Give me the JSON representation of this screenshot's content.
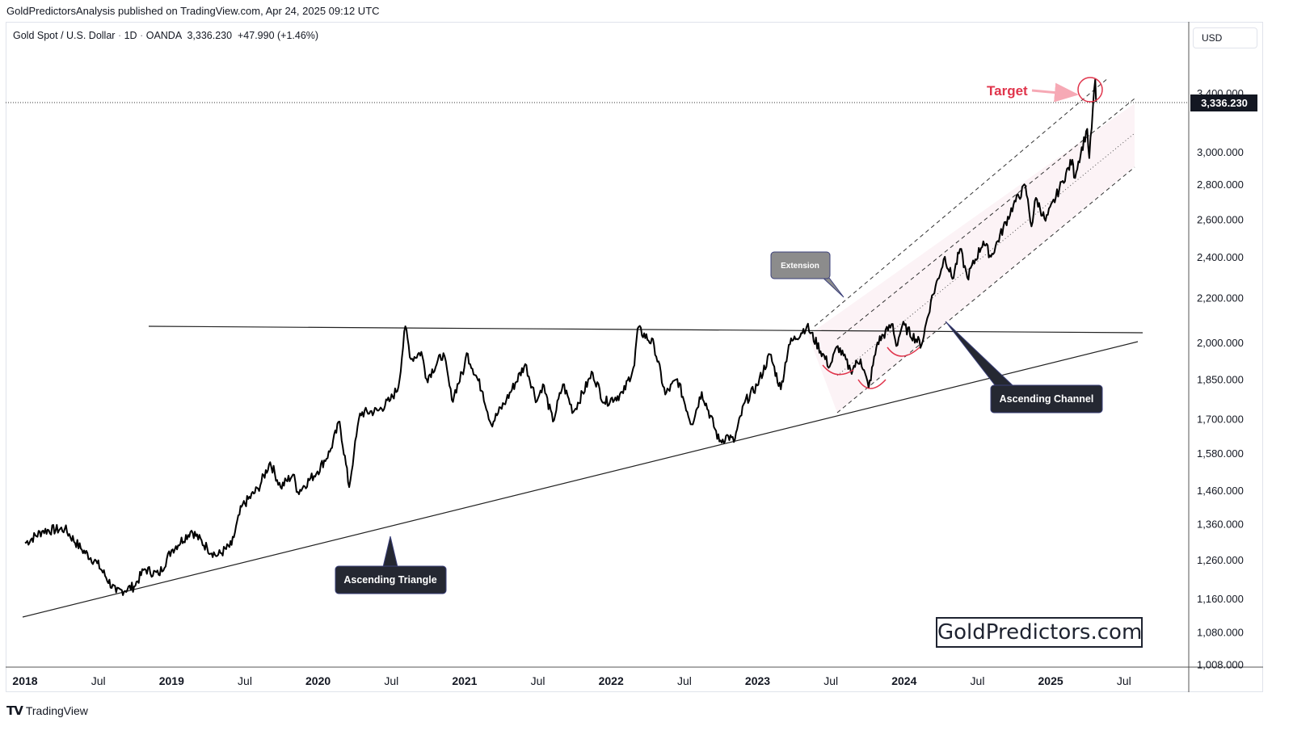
{
  "header": {
    "published": "GoldPredictorsAnalysis published on TradingView.com, Apr 24, 2025 09:12 UTC",
    "symbol": "Gold Spot / U.S. Dollar",
    "interval": "1D",
    "exchange": "OANDA",
    "price": "3,336.230",
    "change": "+47.990 (+1.46%)",
    "sep": "·"
  },
  "currency_button": "USD",
  "footer": {
    "brand": "TradingView"
  },
  "watermark": "GoldPredictors.com",
  "colors": {
    "price_line": "#000000",
    "target": "#e0344b",
    "channel_fill": "#fbeef2",
    "label_dark": "#252832",
    "label_grey": "#8c8c8c"
  },
  "chart_data": {
    "type": "line",
    "series_name": "Gold Spot / U.S. Dollar",
    "x_ticks": [
      "2018",
      "Jul",
      "2019",
      "Jul",
      "2020",
      "Jul",
      "2021",
      "Jul",
      "2022",
      "Jul",
      "2023",
      "Jul",
      "2024",
      "Jul",
      "2025",
      "Jul"
    ],
    "y_ticks": [
      "3,400.000",
      "3,000.000",
      "2,800.000",
      "2,600.000",
      "2,400.000",
      "2,200.000",
      "2,000.000",
      "1,850.000",
      "1,700.000",
      "1,580.000",
      "1,460.000",
      "1,360.000",
      "1,260.000",
      "1,160.000",
      "1,080.000",
      "1,008.000"
    ],
    "scale": "log",
    "last_price_label": "3,336.230",
    "annotations": {
      "target": "Target",
      "extension": "Extension",
      "ascending_channel": "Ascending Channel",
      "ascending_triangle": "Ascending Triangle"
    },
    "price_points": [
      [
        "2018-01-01",
        1305
      ],
      [
        "2018-02-15",
        1340
      ],
      [
        "2018-04-10",
        1345
      ],
      [
        "2018-05-20",
        1290
      ],
      [
        "2018-06-30",
        1250
      ],
      [
        "2018-08-16",
        1175
      ],
      [
        "2018-09-30",
        1190
      ],
      [
        "2018-10-26",
        1235
      ],
      [
        "2018-11-30",
        1220
      ],
      [
        "2019-01-01",
        1285
      ],
      [
        "2019-02-20",
        1340
      ],
      [
        "2019-03-31",
        1292
      ],
      [
        "2019-04-25",
        1270
      ],
      [
        "2019-05-31",
        1300
      ],
      [
        "2019-06-25",
        1410
      ],
      [
        "2019-08-05",
        1465
      ],
      [
        "2019-09-04",
        1550
      ],
      [
        "2019-09-30",
        1470
      ],
      [
        "2019-10-31",
        1510
      ],
      [
        "2019-11-12",
        1455
      ],
      [
        "2019-12-31",
        1520
      ],
      [
        "2020-01-31",
        1585
      ],
      [
        "2020-02-24",
        1690
      ],
      [
        "2020-03-19",
        1470
      ],
      [
        "2020-03-31",
        1580
      ],
      [
        "2020-04-15",
        1720
      ],
      [
        "2020-05-31",
        1730
      ],
      [
        "2020-06-30",
        1770
      ],
      [
        "2020-07-20",
        1820
      ],
      [
        "2020-08-06",
        2070
      ],
      [
        "2020-08-20",
        1930
      ],
      [
        "2020-09-15",
        1960
      ],
      [
        "2020-09-28",
        1850
      ],
      [
        "2020-11-09",
        1955
      ],
      [
        "2020-11-30",
        1770
      ],
      [
        "2020-12-31",
        1895
      ],
      [
        "2021-01-06",
        1955
      ],
      [
        "2021-02-15",
        1800
      ],
      [
        "2021-03-08",
        1680
      ],
      [
        "2021-04-15",
        1770
      ],
      [
        "2021-06-01",
        1910
      ],
      [
        "2021-06-30",
        1765
      ],
      [
        "2021-07-15",
        1830
      ],
      [
        "2021-08-09",
        1690
      ],
      [
        "2021-09-03",
        1830
      ],
      [
        "2021-09-29",
        1725
      ],
      [
        "2021-11-16",
        1875
      ],
      [
        "2021-12-15",
        1760
      ],
      [
        "2022-01-31",
        1795
      ],
      [
        "2022-02-28",
        1905
      ],
      [
        "2022-03-08",
        2060
      ],
      [
        "2022-04-18",
        1990
      ],
      [
        "2022-05-16",
        1790
      ],
      [
        "2022-06-15",
        1850
      ],
      [
        "2022-07-21",
        1680
      ],
      [
        "2022-08-15",
        1800
      ],
      [
        "2022-09-28",
        1620
      ],
      [
        "2022-10-20",
        1640
      ],
      [
        "2022-11-03",
        1618
      ],
      [
        "2022-11-30",
        1760
      ],
      [
        "2022-12-31",
        1825
      ],
      [
        "2023-02-01",
        1950
      ],
      [
        "2023-02-28",
        1810
      ],
      [
        "2023-03-20",
        1990
      ],
      [
        "2023-05-04",
        2070
      ],
      [
        "2023-06-30",
        1900
      ],
      [
        "2023-07-20",
        1985
      ],
      [
        "2023-08-21",
        1885
      ],
      [
        "2023-09-15",
        1930
      ],
      [
        "2023-10-05",
        1815
      ],
      [
        "2023-10-27",
        2000
      ],
      [
        "2023-12-04",
        2080
      ],
      [
        "2023-12-13",
        1985
      ],
      [
        "2023-12-28",
        2075
      ],
      [
        "2024-02-14",
        1990
      ],
      [
        "2024-03-08",
        2180
      ],
      [
        "2024-04-12",
        2400
      ],
      [
        "2024-05-01",
        2290
      ],
      [
        "2024-05-20",
        2440
      ],
      [
        "2024-06-07",
        2295
      ],
      [
        "2024-07-17",
        2480
      ],
      [
        "2024-08-05",
        2400
      ],
      [
        "2024-09-30",
        2680
      ],
      [
        "2024-10-30",
        2790
      ],
      [
        "2024-11-14",
        2560
      ],
      [
        "2024-11-25",
        2720
      ],
      [
        "2024-12-19",
        2590
      ],
      [
        "2025-01-31",
        2820
      ],
      [
        "2025-02-24",
        2950
      ],
      [
        "2025-02-28",
        2840
      ],
      [
        "2025-04-02",
        3150
      ],
      [
        "2025-04-07",
        2960
      ],
      [
        "2025-04-22",
        3500
      ],
      [
        "2025-04-24",
        3336
      ]
    ]
  }
}
